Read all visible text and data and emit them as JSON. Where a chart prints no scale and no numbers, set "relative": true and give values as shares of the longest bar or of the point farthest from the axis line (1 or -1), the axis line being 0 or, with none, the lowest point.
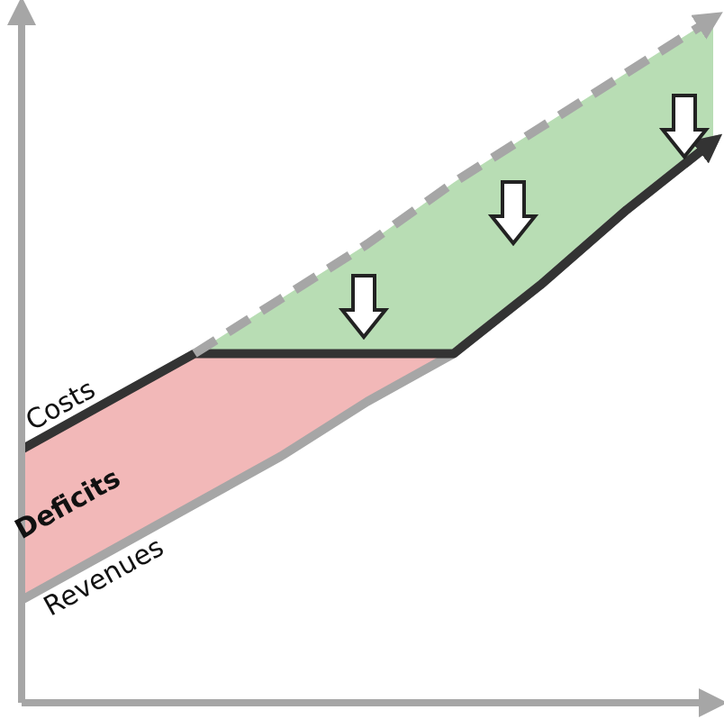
{
  "chart_data": {
    "type": "line",
    "relative": true,
    "categories": [
      null,
      null,
      null,
      null,
      null,
      null,
      null,
      null,
      null
    ],
    "annotations": [
      "Deficits"
    ],
    "series": [
      {
        "name": "Revenues",
        "color": "#a6a6a6",
        "line_style": "solid",
        "values": [
          0.15,
          0.22,
          0.29,
          0.36,
          0.44,
          0.51,
          0.61,
          0.72,
          0.82
        ]
      },
      {
        "name": "Costs",
        "color": "#333333",
        "line_style": "solid",
        "values": [
          0.37,
          0.44,
          0.51,
          0.51,
          0.51,
          0.51,
          0.61,
          0.72,
          0.82
        ]
      },
      {
        "color": "#a6a6a6",
        "line_style": "dashed",
        "values": [
          null,
          null,
          0.51,
          0.59,
          0.67,
          0.76,
          0.84,
          0.92,
          1.0
        ]
      }
    ]
  }
}
